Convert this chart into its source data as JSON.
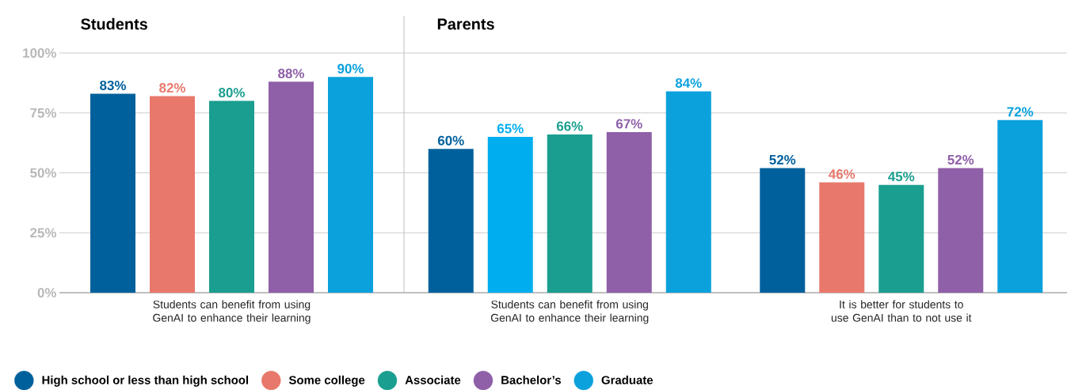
{
  "chart_data": [
    {
      "type": "bar",
      "title": "Students",
      "categories": [
        "Students can benefit from using GenAI to enhance their learning"
      ],
      "ylim": [
        0,
        100
      ],
      "yticks": [
        {
          "value": 0,
          "label": "0%"
        },
        {
          "value": 25,
          "label": "25%"
        },
        {
          "value": 50,
          "label": "50%"
        },
        {
          "value": 75,
          "label": "75%"
        },
        {
          "value": 100,
          "label": "100%"
        }
      ],
      "grid": "y",
      "legend": "bottom",
      "series": [
        {
          "name": "High school or less than high school",
          "color": "#00609c",
          "values": [
            83
          ],
          "value_labels": [
            "83%"
          ]
        },
        {
          "name": "Some college",
          "color": "#e8786b",
          "values": [
            82
          ],
          "value_labels": [
            "82%"
          ]
        },
        {
          "name": "Associate",
          "color": "#1a9e8f",
          "values": [
            80
          ],
          "value_labels": [
            "80%"
          ]
        },
        {
          "name": "Bachelor’s",
          "color": "#8f5fa8",
          "values": [
            88
          ],
          "value_labels": [
            "88%"
          ]
        },
        {
          "name": "Graduate",
          "color": "#0ba1dc",
          "values": [
            90
          ],
          "value_labels": [
            "90%"
          ]
        }
      ]
    },
    {
      "type": "bar",
      "title": "Parents",
      "categories": [
        "Students can benefit from using GenAI to enhance their learning",
        "It is better for students to use GenAI than to not use it"
      ],
      "ylim": [
        0,
        100
      ],
      "yticks": [
        {
          "value": 0,
          "label": null
        },
        {
          "value": 25,
          "label": null
        },
        {
          "value": 50,
          "label": null
        },
        {
          "value": 75,
          "label": null
        },
        {
          "value": 100,
          "label": null
        }
      ],
      "grid": "y",
      "tick_labels": "x",
      "series": [
        {
          "color": "#00609c",
          "values": [
            60,
            52
          ],
          "value_labels": [
            "60%",
            "52%"
          ]
        },
        {
          "colors": [
            "#00aeef",
            "#e8786b"
          ],
          "values": [
            65,
            46
          ],
          "value_labels": [
            "65%",
            "46%"
          ]
        },
        {
          "color": "#1a9e8f",
          "values": [
            66,
            45
          ],
          "value_labels": [
            "66%",
            "45%"
          ]
        },
        {
          "color": "#8f5fa8",
          "values": [
            67,
            52
          ],
          "value_labels": [
            "67%",
            "52%"
          ]
        },
        {
          "color": "#0ba1dc",
          "values": [
            84,
            72
          ],
          "value_labels": [
            "84%",
            "72%"
          ]
        }
      ]
    }
  ]
}
